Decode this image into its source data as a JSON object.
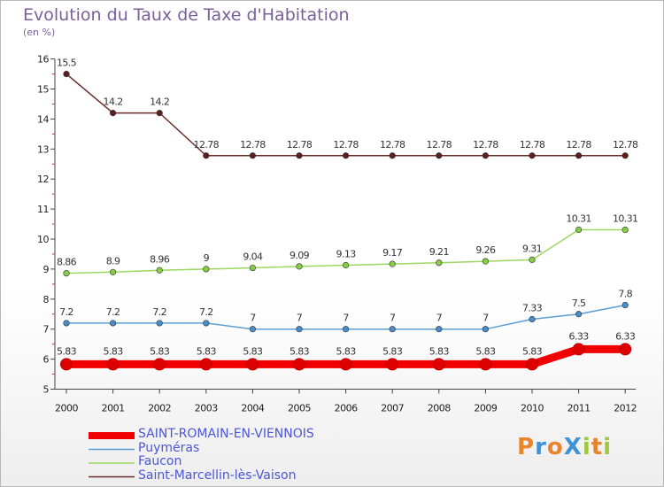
{
  "title": "Evolution du Taux de Taxe d'Habitation",
  "unit": "(en %)",
  "logo": {
    "text": "ProXiti",
    "letters": [
      "P",
      "r",
      "o",
      "X",
      "i",
      "t",
      "i"
    ],
    "colors": [
      "#e8842c",
      "#3f93d4",
      "#e8842c",
      "#3f93d4",
      "#a0c83c",
      "#e8842c",
      "#a0c83c"
    ]
  },
  "chart_data": {
    "type": "line",
    "x": [
      "2000",
      "2001",
      "2002",
      "2003",
      "2004",
      "2005",
      "2006",
      "2007",
      "2008",
      "2009",
      "2010",
      "2011",
      "2012"
    ],
    "ylim": [
      5,
      16
    ],
    "yticks": [
      "5",
      "6",
      "7",
      "8",
      "9",
      "10",
      "11",
      "12",
      "13",
      "14",
      "15",
      "16"
    ],
    "grid": false,
    "legend_position": "bottom-left",
    "series": [
      {
        "name": "SAINT-ROMAIN-EN-VIENNOIS",
        "color": "#f00000",
        "marker": "#dd0000",
        "width": 9,
        "values": [
          5.83,
          5.83,
          5.83,
          5.83,
          5.83,
          5.83,
          5.83,
          5.83,
          5.83,
          5.83,
          5.83,
          6.33,
          6.33
        ],
        "labels": [
          "5.83",
          "5.83",
          "5.83",
          "5.83",
          "5.83",
          "5.83",
          "5.83",
          "5.83",
          "5.83",
          "5.83",
          "5.83",
          "6.33",
          "6.33"
        ]
      },
      {
        "name": "Puyméras",
        "color": "#5c9ed4",
        "marker": "#4a8cc8",
        "width": 1.5,
        "values": [
          7.2,
          7.2,
          7.2,
          7.2,
          7,
          7,
          7,
          7,
          7,
          7,
          7.33,
          7.5,
          7.8
        ],
        "labels": [
          "7.2",
          "7.2",
          "7.2",
          "7.2",
          "7",
          "7",
          "7",
          "7",
          "7",
          "7",
          "7.33",
          "7.5",
          "7.8"
        ]
      },
      {
        "name": "Faucon",
        "color": "#9ad860",
        "marker": "#86cc46",
        "width": 1.5,
        "values": [
          8.86,
          8.9,
          8.96,
          9,
          9.04,
          9.09,
          9.13,
          9.17,
          9.21,
          9.26,
          9.31,
          10.31,
          10.31
        ],
        "labels": [
          "8.86",
          "8.9",
          "8.96",
          "9",
          "9.04",
          "9.09",
          "9.13",
          "9.17",
          "9.21",
          "9.26",
          "9.31",
          "10.31",
          "10.31"
        ]
      },
      {
        "name": "Saint-Marcellin-lès-Vaison",
        "color": "#6b2a2a",
        "marker": "#5a1f1f",
        "width": 1.5,
        "values": [
          15.5,
          14.2,
          14.2,
          12.78,
          12.78,
          12.78,
          12.78,
          12.78,
          12.78,
          12.78,
          12.78,
          12.78,
          12.78
        ],
        "labels": [
          "15.5",
          "14.2",
          "14.2",
          "12.78",
          "12.78",
          "12.78",
          "12.78",
          "12.78",
          "12.78",
          "12.78",
          "12.78",
          "12.78",
          "12.78"
        ]
      }
    ]
  }
}
